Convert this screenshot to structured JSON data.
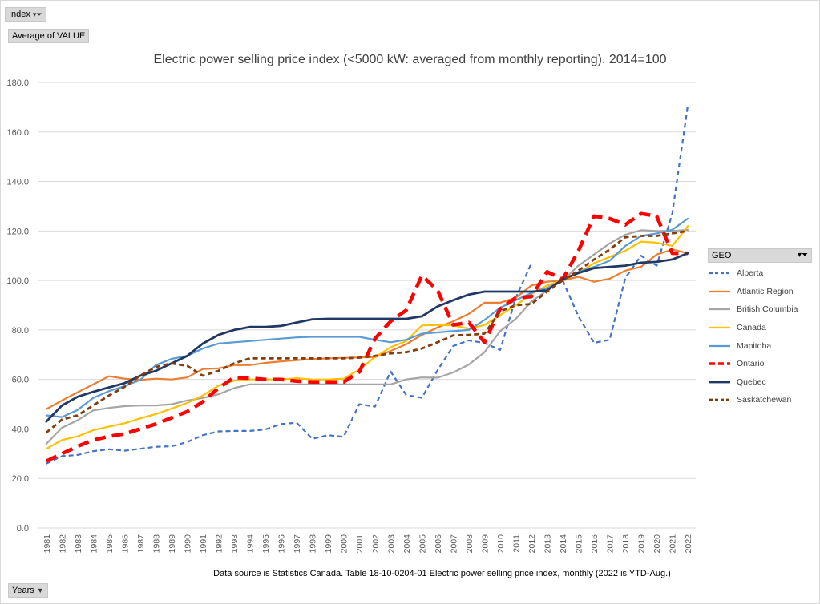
{
  "filters": {
    "index_label": "Index",
    "value_label": "Average of VALUE",
    "years_label": "Years",
    "legend_title": "GEO",
    "filter_icon": "filter-funnel-icon",
    "dropdown_icon": "chevron-down-icon"
  },
  "footer": {
    "source": "Data source is Statistics Canada.  Table  18-10-0204-01  Electric power selling price index, monthly (2022 is YTD-Aug.)"
  },
  "chart_data": {
    "type": "line",
    "title": "Electric power selling price index (<5000 kW: averaged from monthly reporting). 2014=100",
    "xlabel": "",
    "ylabel": "",
    "ylim": [
      0,
      180
    ],
    "yticks": [
      "0.0",
      "20.0",
      "40.0",
      "60.0",
      "80.0",
      "100.0",
      "120.0",
      "140.0",
      "160.0",
      "180.0"
    ],
    "grid": true,
    "legend_position": "right",
    "x": [
      "1981",
      "1982",
      "1983",
      "1984",
      "1985",
      "1986",
      "1987",
      "1988",
      "1989",
      "1990",
      "1991",
      "1992",
      "1993",
      "1994",
      "1995",
      "1996",
      "1997",
      "1998",
      "1999",
      "2000",
      "2001",
      "2002",
      "2003",
      "2004",
      "2005",
      "2006",
      "2007",
      "2008",
      "2009",
      "2010",
      "2011",
      "2012",
      "2013",
      "2014",
      "2015",
      "2016",
      "2017",
      "2018",
      "2019",
      "2020",
      "2021",
      "2022"
    ],
    "series": [
      {
        "name": "Alberta",
        "color": "#4472C4",
        "dash": "dashed",
        "width": 2.2,
        "values": [
          26,
          29,
          29.5,
          31,
          31.8,
          31.2,
          32,
          32.8,
          33,
          34.7,
          37.5,
          39,
          39.2,
          39.2,
          39.8,
          42,
          42.5,
          36,
          37.5,
          36.8,
          50,
          49,
          63.2,
          53.7,
          52.6,
          63.7,
          73.5,
          75.8,
          74.7,
          71.9,
          93,
          107,
          null,
          100,
          85.5,
          74.8,
          76,
          101,
          110,
          106,
          127,
          171
        ]
      },
      {
        "name": "Atlantic Region",
        "color": "#ED7D31",
        "dash": "solid",
        "width": 2.2,
        "values": [
          48,
          51.5,
          54.8,
          58,
          61.3,
          60.3,
          59.8,
          60.3,
          60,
          60.8,
          64.2,
          64.5,
          65.8,
          65.8,
          66.7,
          67.3,
          67.8,
          68.2,
          68.5,
          68.7,
          68.9,
          69,
          71.5,
          74.2,
          78,
          81,
          83.5,
          86.5,
          91,
          91,
          93,
          98,
          99.5,
          100,
          101.5,
          99.5,
          100.7,
          104,
          105.5,
          110.5,
          112.5,
          111
        ]
      },
      {
        "name": "British Columbia",
        "color": "#A5A5A5",
        "dash": "solid",
        "width": 2.2,
        "values": [
          34,
          40.5,
          43.5,
          47.5,
          48.5,
          49.2,
          49.5,
          49.5,
          50,
          51.5,
          52.5,
          54,
          56.5,
          58,
          58,
          58,
          58,
          58,
          58,
          58,
          58,
          58,
          58,
          60,
          60.8,
          60.7,
          62.8,
          66,
          71,
          79.5,
          84.5,
          91.5,
          96,
          100,
          106,
          110.5,
          115,
          118.5,
          120.3,
          120,
          120,
          120.5
        ]
      },
      {
        "name": "Canada",
        "color": "#FFC000",
        "dash": "solid",
        "width": 2.2,
        "values": [
          32,
          35.5,
          37,
          39.5,
          41,
          42.3,
          44.3,
          46,
          48.2,
          50.5,
          53.5,
          57.5,
          59.5,
          60,
          60,
          60,
          60.5,
          60,
          60,
          60.3,
          64,
          69,
          73,
          75.5,
          81.8,
          82,
          81.8,
          80.5,
          82,
          86,
          90,
          94.5,
          98,
          100,
          103,
          107,
          109.5,
          112,
          115.7,
          115.3,
          114,
          122
        ]
      },
      {
        "name": "Manitoba",
        "color": "#5B9BD5",
        "dash": "solid",
        "width": 2.2,
        "values": [
          45.5,
          44.8,
          47.7,
          52.5,
          55.3,
          57.3,
          59.8,
          65.8,
          68.3,
          69.5,
          72.5,
          74.5,
          75,
          75.5,
          76,
          76.5,
          77,
          77.2,
          77.2,
          77.2,
          77.2,
          76,
          75,
          76,
          78.5,
          79,
          79.5,
          80,
          84,
          89,
          92,
          95,
          97,
          100,
          103.5,
          105.5,
          108,
          114,
          118,
          119,
          120.5,
          125
        ]
      },
      {
        "name": "Ontario",
        "color": "#FF0000",
        "dash": "bigdash",
        "width": 4.5,
        "values": [
          27,
          30,
          33,
          35.5,
          37,
          38,
          40,
          42,
          44.5,
          47,
          51,
          56.5,
          60.8,
          60.5,
          60,
          60,
          59.3,
          59,
          59,
          59,
          63,
          76.5,
          83.5,
          88,
          102,
          96,
          82,
          83,
          75,
          88.5,
          93,
          93.5,
          103.5,
          100.5,
          112,
          126,
          125,
          122.5,
          127,
          126,
          111,
          111
        ]
      },
      {
        "name": "Quebec",
        "color": "#203864",
        "dash": "solid",
        "width": 2.8,
        "values": [
          43,
          49.5,
          53,
          55,
          56.8,
          58.5,
          61.5,
          63.5,
          66.5,
          69.5,
          74.5,
          78,
          80,
          81.2,
          81.2,
          81.6,
          83,
          84.3,
          84.5,
          84.5,
          84.5,
          84.5,
          84.5,
          84.5,
          85.5,
          89.5,
          92,
          94.3,
          95.5,
          95.5,
          95.5,
          95.5,
          96,
          100.5,
          103,
          105,
          105.5,
          106,
          107.2,
          107.5,
          108.5,
          111
        ]
      },
      {
        "name": "Saskatchewan",
        "color": "#843C0C",
        "dash": "dashed",
        "width": 2.8,
        "values": [
          38.5,
          43.8,
          45.5,
          49.5,
          53.5,
          57,
          61.5,
          65,
          66.5,
          65.5,
          61.5,
          63.5,
          66.5,
          68.5,
          68.5,
          68.5,
          68.5,
          68.5,
          68.5,
          68.5,
          68.8,
          69.5,
          70.5,
          71,
          72.5,
          75,
          77.8,
          78,
          78.5,
          87.5,
          90,
          90.5,
          95.5,
          100,
          104,
          108.5,
          112.5,
          117.5,
          118,
          118,
          119,
          120
        ]
      }
    ]
  }
}
